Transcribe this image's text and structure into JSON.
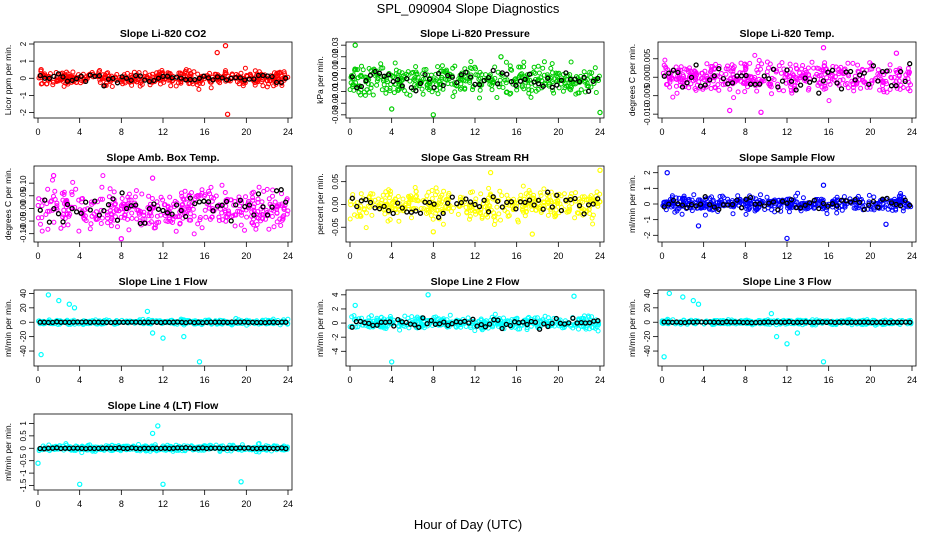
{
  "page": {
    "title": "SPL_090904  Slope Diagnostics",
    "xlabel": "Hour of Day (UTC)"
  },
  "colors": {
    "overlay": "#000000"
  },
  "chart_data": [
    {
      "type": "scatter",
      "title": "Slope Li-820 CO2",
      "ylabel": "Licor ppm per min.",
      "color": "#ff0000",
      "xlim": [
        0,
        24
      ],
      "xticks": [
        0,
        4,
        8,
        12,
        16,
        20,
        24
      ],
      "ylim": [
        -2.2,
        2
      ],
      "yticks": [
        -2,
        -1,
        0,
        1,
        2
      ],
      "ytick_labels": [
        "-2",
        "-1",
        "0",
        "1",
        "2"
      ],
      "spread": 0.4,
      "outliers": [
        [
          18,
          1.9
        ],
        [
          17.2,
          1.5
        ],
        [
          18.2,
          -2.1
        ],
        [
          0.3,
          0.5
        ]
      ]
    },
    {
      "type": "scatter",
      "title": "Slope Li-820 Pressure",
      "ylabel": "kPa per min.",
      "color": "#00cc00",
      "xlim": [
        0,
        24
      ],
      "xticks": [
        0,
        4,
        8,
        12,
        16,
        20,
        24
      ],
      "ylim": [
        -0.031,
        0.031
      ],
      "yticks": [
        -0.03,
        -0.02,
        -0.01,
        0,
        0.01,
        0.02,
        0.03
      ],
      "ytick_labels": [
        "-0.03",
        "-0.02",
        "-0.01",
        "0.00",
        "0.01",
        "0.02",
        "0.03"
      ],
      "spread": 0.012,
      "outliers": [
        [
          0.5,
          0.03
        ],
        [
          4,
          -0.025
        ],
        [
          8,
          -0.03
        ],
        [
          24,
          -0.028
        ],
        [
          14.5,
          0.02
        ]
      ]
    },
    {
      "type": "scatter",
      "title": "Slope Li-820 Temp.",
      "ylabel": "degrees C per min.",
      "color": "#ff00ff",
      "xlim": [
        0,
        24
      ],
      "xticks": [
        0,
        4,
        8,
        12,
        16,
        20,
        24
      ],
      "ylim": [
        -0.0105,
        0.009
      ],
      "yticks": [
        -0.01,
        -0.005,
        0,
        0.005
      ],
      "ytick_labels": [
        "-0.010",
        "-0.005",
        "0.000",
        "0.005"
      ],
      "spread": 0.004,
      "outliers": [
        [
          15.5,
          0.008
        ],
        [
          6.5,
          -0.009
        ],
        [
          9.5,
          -0.0095
        ],
        [
          22.5,
          0.0065
        ]
      ]
    },
    {
      "type": "scatter",
      "title": "Slope Amb. Box Temp.",
      "ylabel": "degrees C per min.",
      "color": "#ff00ff",
      "xlim": [
        0,
        24
      ],
      "xticks": [
        0,
        4,
        8,
        12,
        16,
        20,
        24
      ],
      "ylim": [
        -0.125,
        0.16
      ],
      "yticks": [
        -0.1,
        -0.05,
        0,
        0.05,
        0.1
      ],
      "ytick_labels": [
        "-0.10",
        "-0.05",
        "0.00",
        "0.05",
        "0.10"
      ],
      "spread": 0.08,
      "outliers": [
        [
          8,
          -0.12
        ],
        [
          1.5,
          0.13
        ],
        [
          11,
          0.12
        ]
      ]
    },
    {
      "type": "scatter",
      "title": "Slope Gas Stream RH",
      "ylabel": "percent per min.",
      "color": "#ffff00",
      "xlim": [
        0,
        24
      ],
      "xticks": [
        0,
        4,
        8,
        12,
        16,
        20,
        24
      ],
      "ylim": [
        -0.078,
        0.08
      ],
      "yticks": [
        -0.05,
        0,
        0.05
      ],
      "ytick_labels": [
        "-0.05",
        "0.00",
        "0.05"
      ],
      "spread": 0.03,
      "outliers": [
        [
          13.5,
          0.07
        ],
        [
          8,
          -0.06
        ],
        [
          17.5,
          -0.065
        ],
        [
          24,
          0.075
        ]
      ]
    },
    {
      "type": "scatter",
      "title": "Slope Sample Flow",
      "ylabel": "ml/min per min.",
      "color": "#0000ff",
      "xlim": [
        0,
        24
      ],
      "xticks": [
        0,
        4,
        8,
        12,
        16,
        20,
        24
      ],
      "ylim": [
        -2.3,
        2.3
      ],
      "yticks": [
        -2,
        -1,
        0,
        1,
        2
      ],
      "ytick_labels": [
        "-2",
        "-1",
        "0",
        "1",
        "2"
      ],
      "spread": 0.45,
      "outliers": [
        [
          0.5,
          2.0
        ],
        [
          12,
          -2.2
        ],
        [
          3.5,
          -1.4
        ],
        [
          21.5,
          -1.3
        ],
        [
          15.5,
          1.2
        ]
      ]
    },
    {
      "type": "scatter",
      "title": "Slope Line 1 Flow",
      "ylabel": "ml/min per min.",
      "color": "#00ffff",
      "xlim": [
        0,
        24
      ],
      "xticks": [
        0,
        4,
        8,
        12,
        16,
        20,
        24
      ],
      "ylim": [
        -58,
        42
      ],
      "yticks": [
        -40,
        -20,
        0,
        20,
        40
      ],
      "ytick_labels": [
        "-40",
        "-20",
        "0",
        "20",
        "40"
      ],
      "spread": 3,
      "outliers": [
        [
          0.3,
          -45
        ],
        [
          1,
          38
        ],
        [
          2,
          30
        ],
        [
          3,
          25
        ],
        [
          3.5,
          20
        ],
        [
          11,
          -15
        ],
        [
          12,
          -22
        ],
        [
          15.5,
          -55
        ],
        [
          14,
          -20
        ],
        [
          10.5,
          15
        ],
        [
          19,
          5
        ]
      ]
    },
    {
      "type": "scatter",
      "title": "Slope Line 2 Flow",
      "ylabel": "ml/min per min.",
      "color": "#00ffff",
      "xlim": [
        0,
        24
      ],
      "xticks": [
        0,
        4,
        8,
        12,
        16,
        20,
        24
      ],
      "ylim": [
        -5.8,
        4.4
      ],
      "yticks": [
        -4,
        -2,
        0,
        2,
        4
      ],
      "ytick_labels": [
        "-4",
        "-2",
        "0",
        "2",
        "4"
      ],
      "spread": 0.8,
      "outliers": [
        [
          4,
          -5.5
        ],
        [
          7.5,
          4
        ],
        [
          21.5,
          3.8
        ],
        [
          0.5,
          2.5
        ]
      ]
    },
    {
      "type": "scatter",
      "title": "Slope Line 3 Flow",
      "ylabel": "ml/min per min.",
      "color": "#00ffff",
      "xlim": [
        0,
        24
      ],
      "xticks": [
        0,
        4,
        8,
        12,
        16,
        20,
        24
      ],
      "ylim": [
        -58,
        42
      ],
      "yticks": [
        -40,
        -20,
        0,
        20,
        40
      ],
      "ytick_labels": [
        "-40",
        "-20",
        "0",
        "20",
        "40"
      ],
      "spread": 3,
      "outliers": [
        [
          0.2,
          -48
        ],
        [
          0.7,
          40
        ],
        [
          2,
          35
        ],
        [
          3,
          30
        ],
        [
          3.5,
          25
        ],
        [
          11,
          -20
        ],
        [
          12,
          -30
        ],
        [
          15.5,
          -55
        ],
        [
          13,
          -15
        ],
        [
          10.5,
          12
        ]
      ]
    },
    {
      "type": "scatter",
      "title": "Slope Line 4 (LT) Flow",
      "ylabel": "ml/min per min.",
      "color": "#00ffff",
      "xlim": [
        0,
        24
      ],
      "xticks": [
        0,
        4,
        8,
        12,
        16,
        20,
        24
      ],
      "ylim": [
        -1.6,
        1.3
      ],
      "yticks": [
        -1.5,
        -1,
        -0.5,
        0,
        0.5,
        1
      ],
      "ytick_labels": [
        "-1.5",
        "-1",
        "-0.5",
        "0",
        "0.5",
        "1"
      ],
      "spread": 0.12,
      "outliers": [
        [
          0,
          -0.6
        ],
        [
          4,
          -1.45
        ],
        [
          11.5,
          0.9
        ],
        [
          12,
          -1.45
        ],
        [
          19.5,
          -1.35
        ],
        [
          11,
          0.6
        ]
      ]
    }
  ]
}
